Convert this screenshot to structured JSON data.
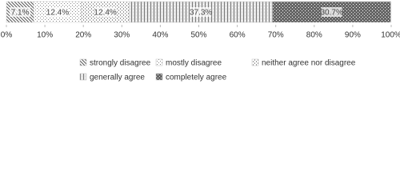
{
  "chart_data": {
    "type": "stacked-bar",
    "orientation": "horizontal",
    "categories": [
      null
    ],
    "series": [
      {
        "name": "strongly disagree",
        "color": "#555555",
        "values": [
          7.1
        ],
        "value_labels": [
          "7.1%"
        ]
      },
      {
        "name": "mostly disagree",
        "color": "#888888",
        "values": [
          12.4
        ],
        "value_labels": [
          "12.4%"
        ]
      },
      {
        "name": "neither agree nor disagree",
        "color": "#999999",
        "values": [
          12.4
        ],
        "value_labels": [
          "12.4%"
        ]
      },
      {
        "name": "generally agree",
        "color": "#7a7a7a",
        "values": [
          37.3
        ],
        "value_labels": [
          "37.3%"
        ]
      },
      {
        "name": "completely agree",
        "color": "#666666",
        "values": [
          30.7
        ],
        "value_labels": [
          "30.7%"
        ]
      }
    ],
    "xlim": [
      0,
      100
    ],
    "xticks": [
      {
        "value": 0,
        "label": "0%"
      },
      {
        "value": 10,
        "label": "10%"
      },
      {
        "value": 20,
        "label": "20%"
      },
      {
        "value": 30,
        "label": "30%"
      },
      {
        "value": 40,
        "label": "40%"
      },
      {
        "value": 50,
        "label": "50%"
      },
      {
        "value": 60,
        "label": "60%"
      },
      {
        "value": 70,
        "label": "70%"
      },
      {
        "value": 80,
        "label": "80%"
      },
      {
        "value": 90,
        "label": "90%"
      },
      {
        "value": 100,
        "label": "100%"
      }
    ],
    "legend": "bottom"
  }
}
